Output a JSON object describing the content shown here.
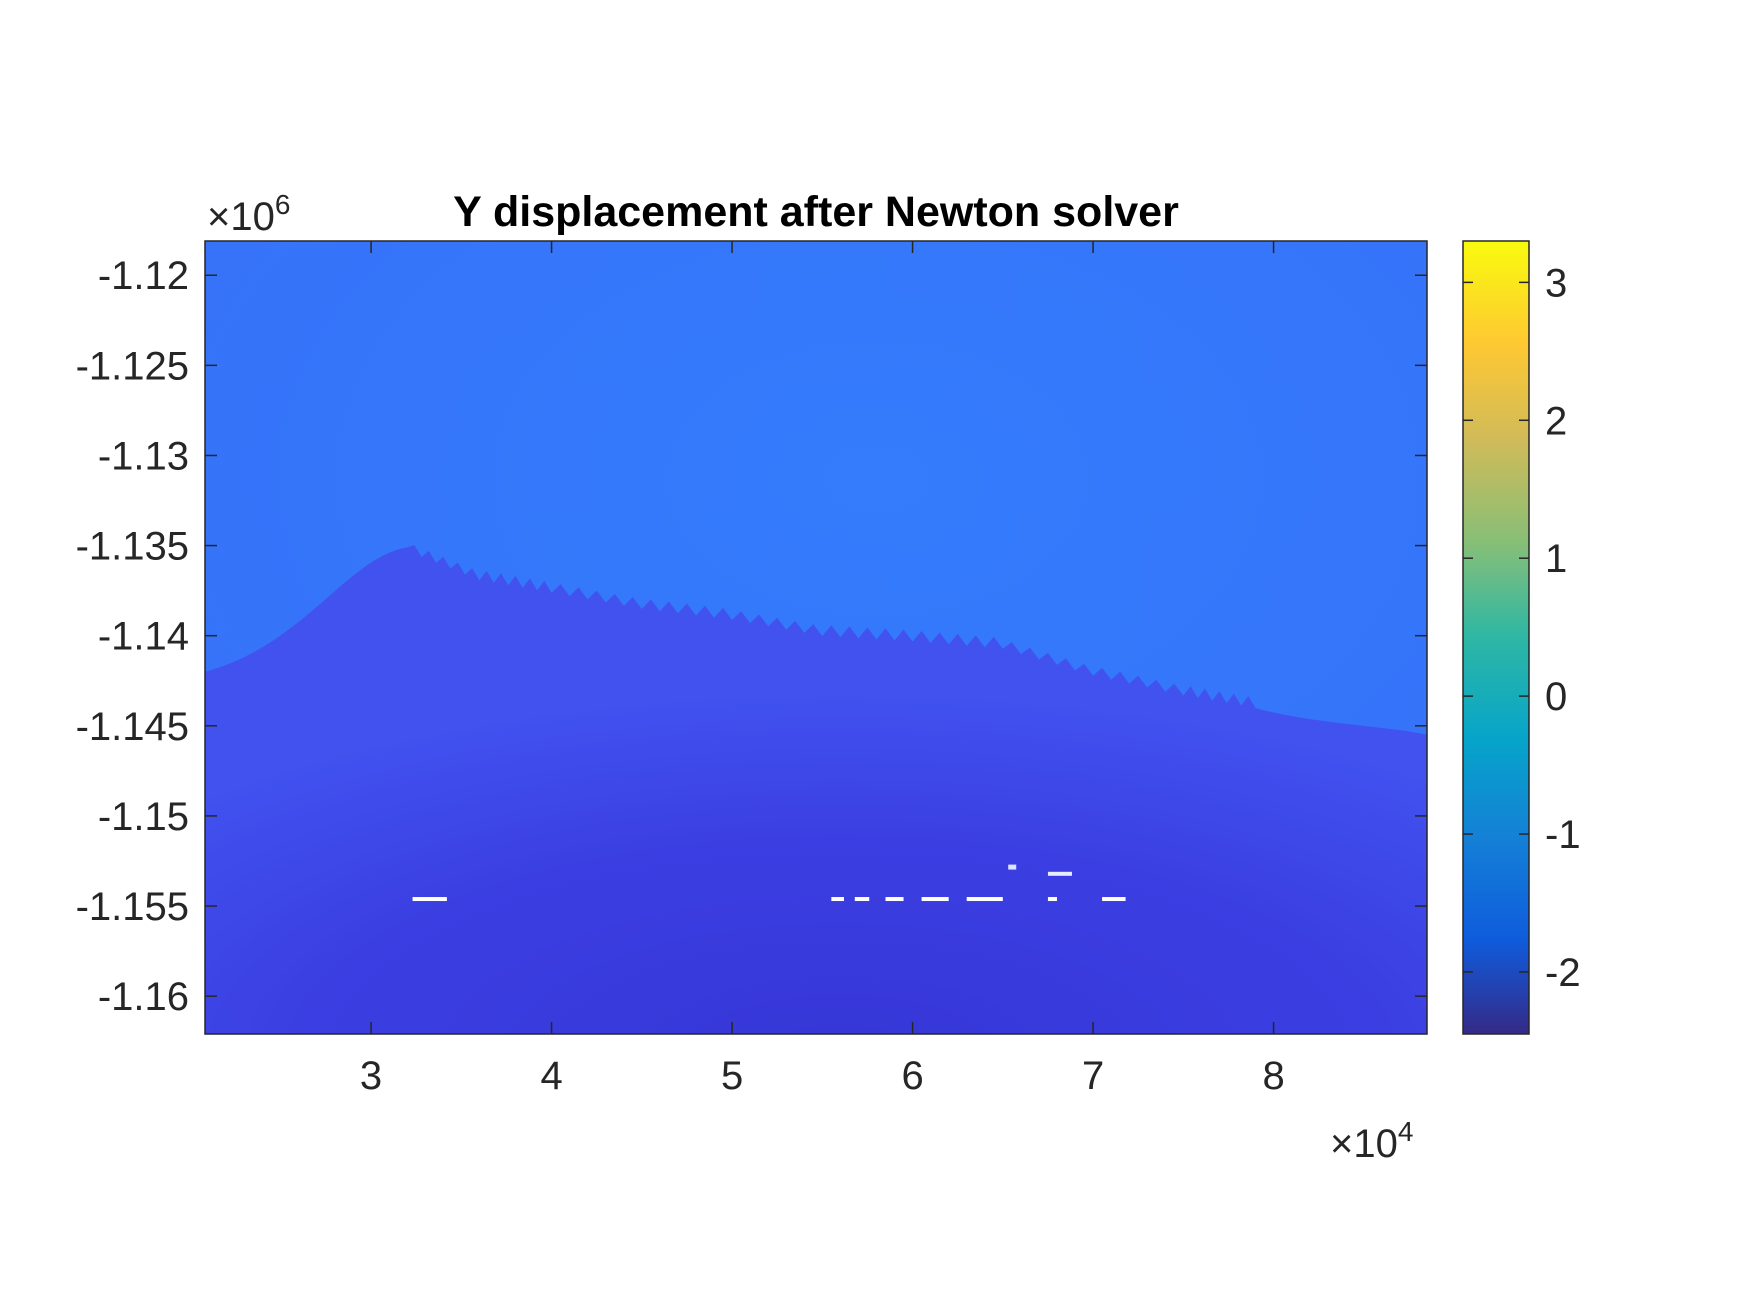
{
  "chart_data": {
    "type": "heatmap",
    "title": "Y displacement after Newton solver",
    "xlabel": "",
    "ylabel": "",
    "x_exponent_label": "×10",
    "x_exponent": "4",
    "y_exponent_label": "×10",
    "y_exponent": "6",
    "xlim": [
      2.08,
      8.85
    ],
    "ylim": [
      -1.1621,
      -1.1181
    ],
    "x_ticks": [
      3,
      4,
      5,
      6,
      7,
      8
    ],
    "x_tick_labels": [
      "3",
      "4",
      "5",
      "6",
      "7",
      "8"
    ],
    "y_ticks": [
      -1.12,
      -1.125,
      -1.13,
      -1.135,
      -1.14,
      -1.145,
      -1.15,
      -1.155,
      -1.16
    ],
    "y_tick_labels": [
      "-1.12",
      "-1.125",
      "-1.13",
      "-1.135",
      "-1.14",
      "-1.145",
      "-1.15",
      "-1.155",
      "-1.16"
    ],
    "colorbar": {
      "colormap": "parula",
      "limits": [
        -2.45,
        3.3
      ],
      "ticks": [
        3,
        2,
        1,
        0,
        -1,
        -2
      ],
      "tick_labels": [
        "3",
        "2",
        "1",
        "0",
        "-1",
        "-2"
      ]
    },
    "regions": [
      {
        "name": "upper",
        "approx_value": -1.0,
        "color": "#3579fb"
      },
      {
        "name": "lower",
        "approx_value": -1.8,
        "color": "#3f47eb"
      }
    ],
    "boundary_y_approx": [
      [
        3.2,
        -1.1351
      ],
      [
        3.6,
        -1.1367
      ],
      [
        4.0,
        -1.1374
      ],
      [
        4.5,
        -1.1383
      ],
      [
        5.0,
        -1.1389
      ],
      [
        5.5,
        -1.1398
      ],
      [
        6.0,
        -1.1401
      ],
      [
        6.5,
        -1.1405
      ],
      [
        7.0,
        -1.142
      ],
      [
        7.5,
        -1.1431
      ],
      [
        7.9,
        -1.1438
      ]
    ]
  },
  "colors": {
    "axis": "#262626",
    "upper_region": "#3579fb",
    "lower_region": "#3f47eb",
    "lower_dark": "#3738d8"
  }
}
